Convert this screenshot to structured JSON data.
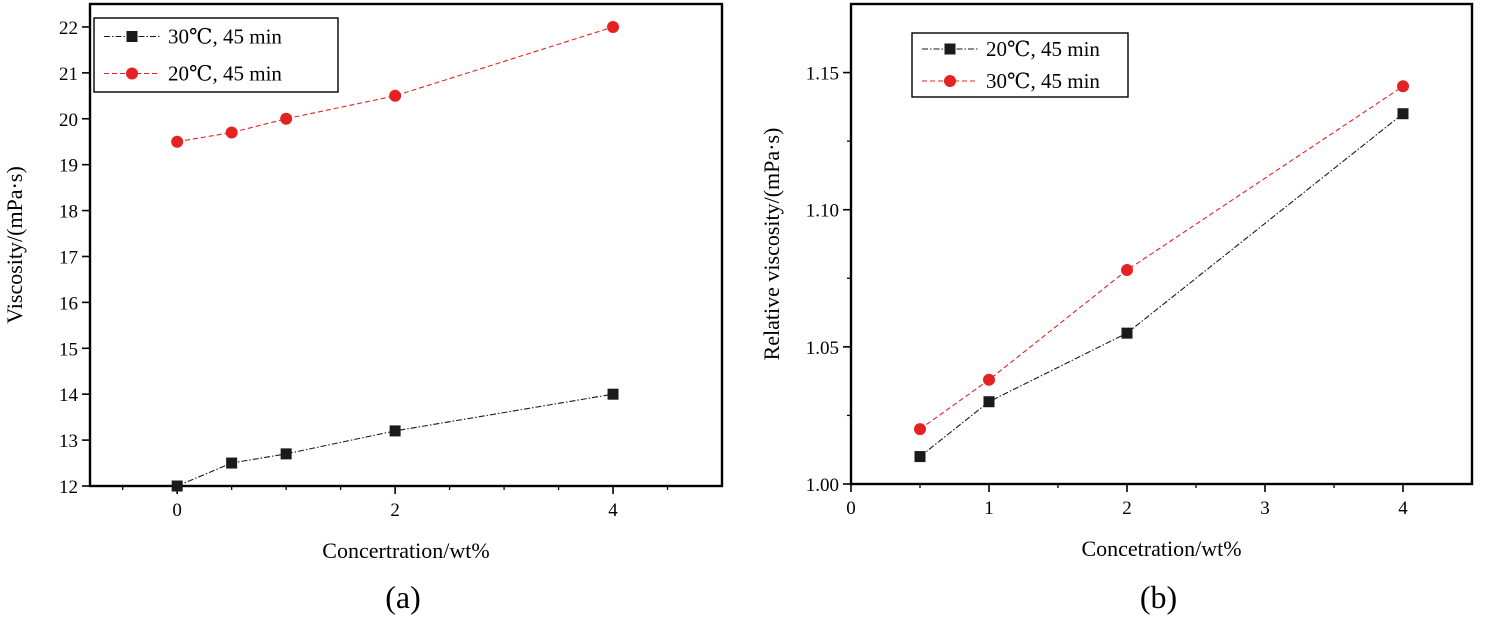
{
  "chart_data": [
    {
      "panel": "(a)",
      "type": "line",
      "xlabel": "Concertration/wt%",
      "ylabel": "Viscosity/(mPa·s)",
      "xlim": [
        -0.8,
        5.0
      ],
      "ylim": [
        12,
        22.5
      ],
      "xticks": [
        0,
        2,
        4
      ],
      "xticks_minor": [
        -0.5,
        0.5,
        1,
        1.5,
        2.5,
        3,
        3.5,
        4.5
      ],
      "yticks": [
        12,
        13,
        14,
        15,
        16,
        17,
        18,
        19,
        20,
        21,
        22
      ],
      "grid": false,
      "legend": "top-left",
      "series": [
        {
          "name": "30℃,  45 min",
          "marker": "square",
          "color": "#1a1a1a",
          "line": "dash-dot",
          "x": [
            0,
            0.5,
            1,
            2,
            4
          ],
          "y": [
            12.0,
            12.5,
            12.7,
            13.2,
            14.0
          ]
        },
        {
          "name": "20℃,  45 min",
          "marker": "circle",
          "color": "#e52222",
          "line": "dashed",
          "x": [
            0,
            0.5,
            1,
            2,
            4
          ],
          "y": [
            19.5,
            19.7,
            20.0,
            20.5,
            22.0
          ]
        }
      ]
    },
    {
      "panel": "(b)",
      "type": "line",
      "xlabel": "Concetration/wt%",
      "ylabel": "Relative viscosity/(mPa·s)",
      "xlim": [
        0,
        4.5
      ],
      "ylim": [
        1.0,
        1.175
      ],
      "xticks": [
        0,
        1,
        2,
        3,
        4
      ],
      "xticks_minor": [
        0.5,
        1.5,
        2.5,
        3.5
      ],
      "yticks": [
        1.0,
        1.05,
        1.1,
        1.15
      ],
      "yticks_minor": [
        1.025,
        1.075,
        1.125
      ],
      "grid": false,
      "legend": "top-left",
      "series": [
        {
          "name": "20℃, 45 min",
          "marker": "square",
          "color": "#1a1a1a",
          "line": "dash-dot",
          "x": [
            0.5,
            1,
            2,
            4
          ],
          "y": [
            1.01,
            1.03,
            1.055,
            1.135
          ]
        },
        {
          "name": "30℃, 45 min",
          "marker": "circle",
          "color": "#e52222",
          "line": "dashed",
          "x": [
            0.5,
            1,
            2,
            4
          ],
          "y": [
            1.02,
            1.038,
            1.078,
            1.145
          ]
        }
      ]
    }
  ]
}
